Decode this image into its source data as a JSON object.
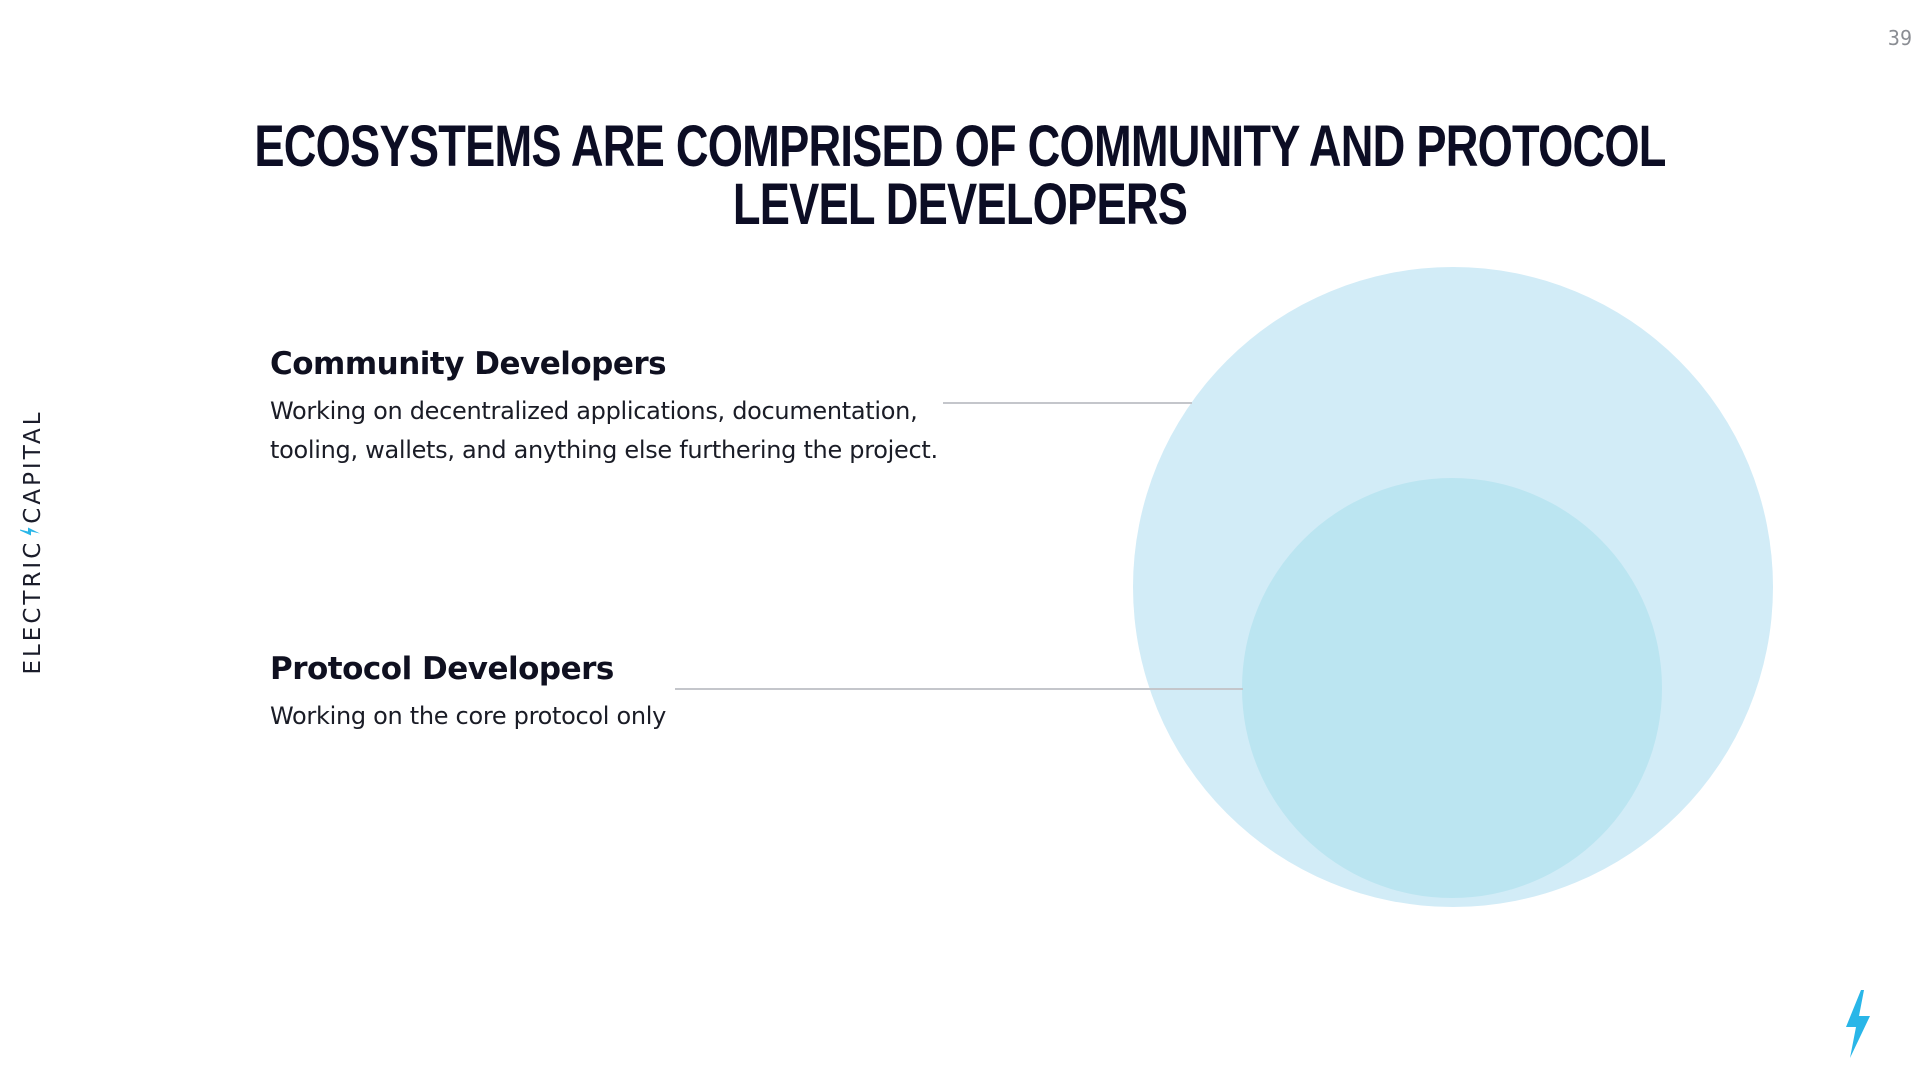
{
  "page_number": "39",
  "title": "Ecosystems are comprised of community and protocol level developers",
  "brand": {
    "left_text": "ELECTRIC",
    "right_text": "CAPITAL",
    "accent_color": "#29b6e8"
  },
  "groups": [
    {
      "heading": "Community Developers",
      "description_line1": "Working on decentralized applications, documentation,",
      "description_line2": "tooling, wallets, and anything else furthering the project."
    },
    {
      "heading": "Protocol Developers",
      "description_line1": "Working on the core protocol only"
    }
  ],
  "colors": {
    "outer_circle": "#d2ecf7",
    "inner_circle": "#bbe5f1",
    "connector_line": "#c4c6cb",
    "title": "#0c0d24"
  },
  "icons": {
    "footer_icon": "lightning-bolt-icon",
    "brand_icon": "lightning-bolt-icon"
  }
}
